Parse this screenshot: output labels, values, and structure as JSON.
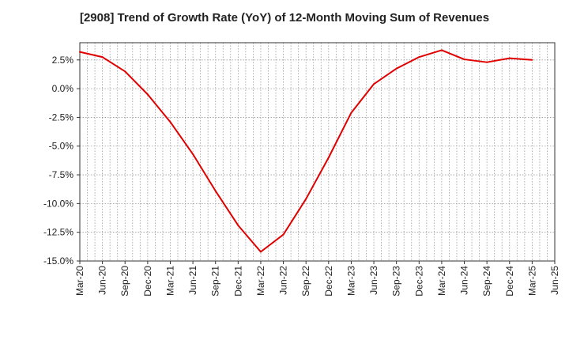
{
  "chart_data": {
    "type": "line",
    "title": "[2908]  Trend of Growth Rate (YoY) of 12-Month Moving Sum of Revenues",
    "xlabel": "",
    "ylabel": "",
    "x": [
      "Mar-20",
      "Jun-20",
      "Sep-20",
      "Dec-20",
      "Mar-21",
      "Jun-21",
      "Sep-21",
      "Dec-21",
      "Mar-22",
      "Jun-22",
      "Sep-22",
      "Dec-22",
      "Mar-23",
      "Jun-23",
      "Sep-23",
      "Dec-23",
      "Mar-24",
      "Jun-24",
      "Sep-24",
      "Dec-24",
      "Mar-25"
    ],
    "x_ticks": [
      "Mar-20",
      "Jun-20",
      "Sep-20",
      "Dec-20",
      "Mar-21",
      "Jun-21",
      "Sep-21",
      "Dec-21",
      "Mar-22",
      "Jun-22",
      "Sep-22",
      "Dec-22",
      "Mar-23",
      "Jun-23",
      "Sep-23",
      "Dec-23",
      "Mar-24",
      "Jun-24",
      "Sep-24",
      "Dec-24",
      "Mar-25",
      "Jun-25"
    ],
    "y_ticks": [
      "2.5%",
      "0.0%",
      "-2.5%",
      "-5.0%",
      "-7.5%",
      "-10.0%",
      "-12.5%",
      "-15.0%"
    ],
    "y_tick_values": [
      2.5,
      0,
      -2.5,
      -5,
      -7.5,
      -10,
      -12.5,
      -15
    ],
    "ylim": [
      -15,
      4
    ],
    "grid": true,
    "series": [
      {
        "color": "#e00000",
        "values": [
          3.2,
          2.75,
          1.5,
          -0.5,
          -2.9,
          -5.7,
          -8.9,
          -11.9,
          -14.2,
          -12.7,
          -9.6,
          -6.0,
          -2.1,
          0.4,
          1.75,
          2.75,
          3.35,
          2.55,
          2.3,
          2.65,
          2.5
        ]
      }
    ]
  }
}
